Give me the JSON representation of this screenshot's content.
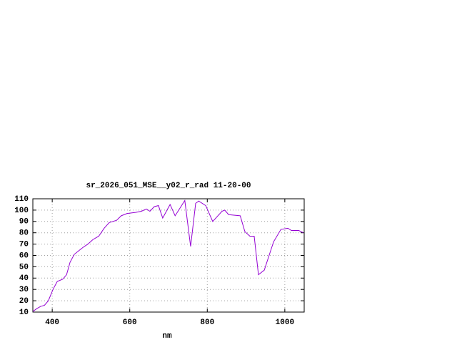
{
  "chart_data": {
    "type": "line",
    "title": "sr_2026_051_MSE__y02_r_rad 11-20-00",
    "xlabel": "nm",
    "x": [
      350,
      360,
      370,
      380,
      390,
      402,
      413,
      427,
      437,
      446,
      457,
      468,
      479,
      492,
      505,
      520,
      534,
      547,
      566,
      578,
      593,
      615,
      630,
      643,
      652,
      663,
      674,
      685,
      704,
      717,
      742,
      757,
      770,
      778,
      796,
      814,
      838,
      845,
      855,
      885,
      897,
      910,
      921,
      932,
      947,
      971,
      990,
      1008,
      1017,
      1036,
      1048
    ],
    "series": [
      {
        "color": "#9400d3",
        "values": [
          10.5,
          13,
          15,
          16,
          20,
          30,
          37,
          39,
          43,
          54,
          61,
          64,
          67,
          70,
          74,
          77,
          84,
          89,
          91,
          95,
          97,
          98,
          99,
          101,
          99,
          103,
          104,
          93,
          105,
          95,
          108.5,
          68,
          106,
          108,
          104,
          90,
          99,
          100,
          96,
          95,
          81,
          77,
          77,
          43,
          47,
          72,
          83,
          84,
          82,
          82,
          80
        ]
      }
    ],
    "xlim": [
      350,
      1050
    ],
    "ylim": [
      10,
      110
    ],
    "xticks": [
      400,
      600,
      800,
      1000
    ],
    "yticks": [
      10,
      20,
      30,
      40,
      50,
      60,
      70,
      80,
      90,
      100,
      110
    ],
    "grid": true
  }
}
